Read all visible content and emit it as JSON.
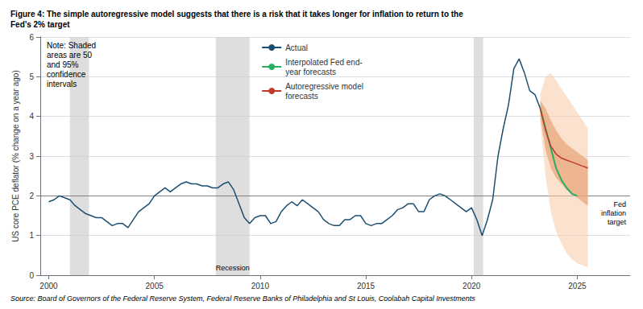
{
  "chart_data": {
    "type": "line",
    "title": "Figure 4: The simple autoregressive model suggests that there is a risk that it takes longer for inflation to return to the\nFed’s 2% target",
    "ylabel": "US core PCE deflator (% change on a year ago)",
    "note": "Note: Shaded\nareas are 50\nand 95%\nconfidence\nintervals",
    "source": "Source: Board of Governors of the Federal Reserve System, Federal Reserve Banks of Philadelphia and St Louis, Coolabah Capital Investments",
    "xlim": [
      1999.6,
      2027.5
    ],
    "xticks": [
      2000,
      2005,
      2010,
      2015,
      2020,
      2025
    ],
    "ylim": [
      0,
      6
    ],
    "yticks": [
      0,
      1,
      2,
      3,
      4,
      5,
      6
    ],
    "grid": "y",
    "legend": "upper left",
    "series": [
      {
        "name": "Actual",
        "color": "#1b4f72",
        "x": [
          2000.0,
          2000.25,
          2000.5,
          2000.75,
          2001.0,
          2001.25,
          2001.5,
          2001.75,
          2002.0,
          2002.25,
          2002.5,
          2002.75,
          2003.0,
          2003.25,
          2003.5,
          2003.75,
          2004.0,
          2004.25,
          2004.5,
          2004.75,
          2005.0,
          2005.25,
          2005.5,
          2005.75,
          2006.0,
          2006.25,
          2006.5,
          2006.75,
          2007.0,
          2007.25,
          2007.5,
          2007.75,
          2008.0,
          2008.25,
          2008.5,
          2008.75,
          2009.0,
          2009.25,
          2009.5,
          2009.75,
          2010.0,
          2010.25,
          2010.5,
          2010.75,
          2011.0,
          2011.25,
          2011.5,
          2011.75,
          2012.0,
          2012.25,
          2012.5,
          2012.75,
          2013.0,
          2013.25,
          2013.5,
          2013.75,
          2014.0,
          2014.25,
          2014.5,
          2014.75,
          2015.0,
          2015.25,
          2015.5,
          2015.75,
          2016.0,
          2016.25,
          2016.5,
          2016.75,
          2017.0,
          2017.25,
          2017.5,
          2017.75,
          2018.0,
          2018.25,
          2018.5,
          2018.75,
          2019.0,
          2019.25,
          2019.5,
          2019.75,
          2020.0,
          2020.25,
          2020.5,
          2020.75,
          2021.0,
          2021.25,
          2021.5,
          2021.75,
          2022.0,
          2022.25,
          2022.5,
          2022.75,
          2023.0,
          2023.25
        ],
        "values": [
          1.85,
          1.9,
          2.0,
          1.95,
          1.9,
          1.75,
          1.65,
          1.55,
          1.5,
          1.45,
          1.45,
          1.35,
          1.25,
          1.3,
          1.3,
          1.2,
          1.4,
          1.6,
          1.7,
          1.8,
          2.0,
          2.1,
          2.2,
          2.1,
          2.2,
          2.3,
          2.35,
          2.3,
          2.3,
          2.25,
          2.25,
          2.2,
          2.2,
          2.3,
          2.35,
          2.15,
          1.8,
          1.45,
          1.3,
          1.45,
          1.5,
          1.5,
          1.3,
          1.35,
          1.6,
          1.75,
          1.85,
          1.75,
          1.9,
          1.8,
          1.7,
          1.6,
          1.4,
          1.3,
          1.25,
          1.25,
          1.4,
          1.4,
          1.5,
          1.5,
          1.3,
          1.25,
          1.3,
          1.3,
          1.4,
          1.5,
          1.65,
          1.7,
          1.8,
          1.8,
          1.6,
          1.6,
          1.9,
          2.0,
          2.05,
          2.0,
          1.9,
          1.8,
          1.7,
          1.6,
          1.7,
          1.4,
          1.0,
          1.4,
          1.9,
          3.0,
          3.7,
          4.3,
          5.2,
          5.45,
          5.1,
          4.65,
          4.55,
          4.2
        ]
      },
      {
        "name": "Interpolated Fed end-\nyear forecasts",
        "color": "#27ae60",
        "x": [
          2023.25,
          2023.5,
          2023.75,
          2024.0,
          2024.25,
          2024.5,
          2024.75,
          2025.0
        ],
        "values": [
          4.2,
          3.7,
          3.2,
          2.7,
          2.4,
          2.2,
          2.05,
          2.0
        ]
      },
      {
        "name": "Autoregressive model\nforecasts",
        "color": "#c0392b",
        "x": [
          2023.25,
          2023.5,
          2023.75,
          2024.0,
          2024.25,
          2024.5,
          2024.75,
          2025.0,
          2025.25,
          2025.5
        ],
        "values": [
          4.2,
          3.65,
          3.25,
          3.05,
          2.95,
          2.9,
          2.85,
          2.8,
          2.75,
          2.7
        ]
      }
    ],
    "confidence_bands": [
      {
        "color": "#f5cba7",
        "x": [
          2023.25,
          2023.5,
          2023.75,
          2024.0,
          2024.25,
          2024.5,
          2024.75,
          2025.0,
          2025.25,
          2025.5
        ],
        "upper": [
          4.55,
          5.0,
          5.1,
          4.9,
          4.7,
          4.5,
          4.3,
          4.1,
          3.9,
          3.7
        ],
        "lower": [
          3.85,
          2.5,
          1.6,
          1.1,
          0.8,
          0.55,
          0.4,
          0.3,
          0.25,
          0.2
        ]
      },
      {
        "color": "#e59866",
        "x": [
          2023.25,
          2023.5,
          2023.75,
          2024.0,
          2024.25,
          2024.5,
          2024.75,
          2025.0,
          2025.25,
          2025.5
        ],
        "upper": [
          4.4,
          4.2,
          3.9,
          3.65,
          3.45,
          3.3,
          3.2,
          3.1,
          3.0,
          2.9
        ],
        "lower": [
          4.0,
          3.15,
          2.7,
          2.45,
          2.3,
          2.15,
          2.05,
          1.95,
          1.85,
          1.75
        ]
      }
    ],
    "reference_line": {
      "value": 2.0,
      "label": "Fed\ninflation\ntarget",
      "color": "#808080"
    },
    "recessions": {
      "ranges": [
        [
          2001.0,
          2001.9
        ],
        [
          2007.9,
          2009.5
        ],
        [
          2020.1,
          2020.55
        ]
      ],
      "label": "Recession",
      "color": "#d0d0d0"
    }
  }
}
